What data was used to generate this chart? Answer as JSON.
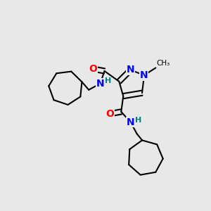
{
  "background_color": "#e8e8e8",
  "fig_size": [
    3.0,
    3.0
  ],
  "dpi": 100,
  "bond_color": "#000000",
  "bond_width": 1.5,
  "atom_colors": {
    "N": "#0000ff",
    "O": "#ff0000",
    "H": "#008080",
    "C": "#000000"
  },
  "font_size_atom": 9,
  "font_size_methyl": 8
}
